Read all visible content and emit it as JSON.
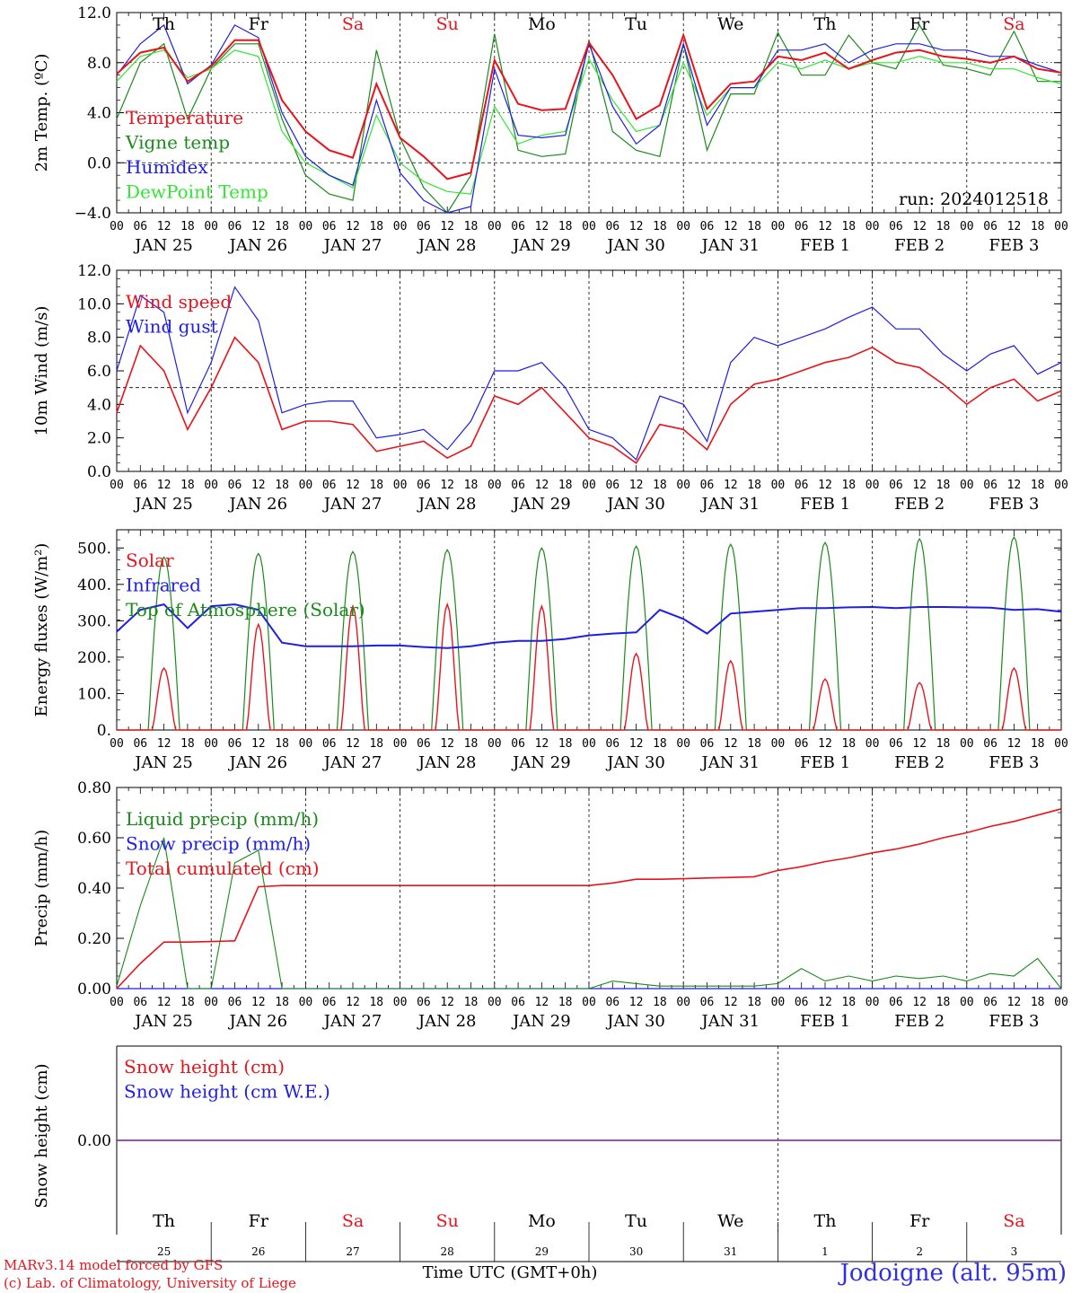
{
  "footer": {
    "model": "MARv3.14 model forced by GFS",
    "copyright": "(c) Lab. of Climatology, University of Liege",
    "xlabel": "Time UTC (GMT+0h)",
    "station": "Jodoigne (alt. 95m)"
  },
  "colors": {
    "red": "#e8141c",
    "green": "#1a8a1a",
    "blue": "#1e1ee6",
    "lightgreen": "#33e633",
    "purple": "#7a1a9a",
    "weekend": "#e8141c",
    "weekday": "#000000"
  },
  "days": {
    "weekday_labels": [
      "Th",
      "Fr",
      "Sa",
      "Su",
      "Mo",
      "Tu",
      "We",
      "Th",
      "Fr",
      "Sa"
    ],
    "weekend_flags": [
      false,
      false,
      true,
      true,
      false,
      false,
      false,
      false,
      false,
      true
    ],
    "date_labels": [
      "JAN 25",
      "JAN 26",
      "JAN 27",
      "JAN 28",
      "JAN 29",
      "JAN 30",
      "JAN 31",
      "FEB  1",
      "FEB  2",
      "FEB  3"
    ],
    "day_numbers": [
      "25",
      "26",
      "27",
      "28",
      "29",
      "30",
      "31",
      "1",
      "2",
      "3"
    ],
    "hour_labels": [
      "00",
      "06",
      "12",
      "18"
    ],
    "final_hour": "00"
  },
  "chart_data": [
    {
      "type": "line",
      "ylabel": "2m Temp. (ºC)",
      "ylim": [
        -4,
        12
      ],
      "yticks": [
        "12.0",
        "8.0",
        "4.0",
        "0.0",
        "−4.0"
      ],
      "reference_line": 0,
      "annotation": "run: 2024012518",
      "x_hours": [
        0,
        6,
        12,
        18,
        24,
        30,
        36,
        42,
        48,
        54,
        60,
        66,
        72,
        78,
        84,
        90,
        96,
        102,
        108,
        114,
        120,
        126,
        132,
        138,
        144,
        150,
        156,
        162,
        168,
        174,
        180,
        186,
        192,
        198,
        204,
        210,
        216,
        222,
        228,
        234,
        240
      ],
      "series": [
        {
          "name": "Temperature",
          "color": "red",
          "values": [
            7.1,
            8.8,
            9.2,
            6.5,
            7.7,
            9.8,
            9.8,
            5.0,
            2.5,
            1.0,
            0.4,
            6.3,
            2.0,
            0.5,
            -1.3,
            -0.8,
            8.2,
            4.7,
            4.2,
            4.3,
            9.6,
            7.0,
            3.5,
            4.6,
            10.2,
            4.3,
            6.3,
            6.5,
            8.5,
            8.2,
            8.8,
            7.5,
            8.2,
            8.8,
            9.0,
            8.5,
            8.3,
            8.0,
            8.5,
            7.5,
            7.2
          ]
        },
        {
          "name": "Vigne temp",
          "color": "green",
          "values": [
            3.5,
            8.0,
            9.5,
            3.5,
            7.5,
            9.5,
            9.5,
            3.5,
            -1.0,
            -2.5,
            -3.0,
            9.0,
            2.0,
            -2.0,
            -4.0,
            -1.0,
            10.3,
            1.0,
            0.5,
            0.7,
            9.8,
            2.5,
            1.0,
            0.5,
            9.5,
            1.0,
            5.5,
            5.5,
            10.4,
            7.0,
            7.0,
            10.2,
            8.0,
            7.5,
            11.0,
            7.8,
            7.5,
            7.0,
            10.5,
            6.5,
            6.5
          ]
        },
        {
          "name": "Humidex",
          "color": "blue",
          "values": [
            7.0,
            9.5,
            11.0,
            6.3,
            7.8,
            11.0,
            10.0,
            4.0,
            0.5,
            -1.0,
            -1.8,
            5.0,
            -0.8,
            -3.0,
            -4.0,
            -3.5,
            7.5,
            2.2,
            2.0,
            2.2,
            9.5,
            4.5,
            1.5,
            3.0,
            9.5,
            3.0,
            6.0,
            6.0,
            9.0,
            9.0,
            9.5,
            8.0,
            9.0,
            9.5,
            9.5,
            9.0,
            9.0,
            8.5,
            8.5,
            7.8,
            7.2
          ]
        },
        {
          "name": "DewPoint Temp",
          "color": "lightgreen",
          "values": [
            6.5,
            8.5,
            9.0,
            6.8,
            7.5,
            9.0,
            8.5,
            2.5,
            0.0,
            -1.0,
            -2.0,
            3.8,
            0.0,
            -1.5,
            -2.3,
            -2.5,
            4.5,
            1.5,
            2.2,
            2.5,
            8.3,
            5.0,
            2.5,
            3.0,
            8.0,
            3.8,
            6.0,
            6.0,
            8.0,
            7.5,
            8.2,
            7.5,
            8.0,
            8.0,
            8.5,
            8.0,
            8.0,
            7.5,
            7.5,
            6.8,
            6.3
          ]
        }
      ],
      "legend": [
        "Temperature",
        "Vigne temp",
        "Humidex",
        "DewPoint Temp"
      ]
    },
    {
      "type": "line",
      "ylabel": "10m Wind (m/s)",
      "ylim": [
        0,
        12
      ],
      "yticks": [
        "12.0",
        "10.0",
        "8.0",
        "6.0",
        "4.0",
        "2.0",
        "0.0"
      ],
      "reference_line": 5,
      "x_hours": [
        0,
        6,
        12,
        18,
        24,
        30,
        36,
        42,
        48,
        54,
        60,
        66,
        72,
        78,
        84,
        90,
        96,
        102,
        108,
        114,
        120,
        126,
        132,
        138,
        144,
        150,
        156,
        162,
        168,
        174,
        180,
        186,
        192,
        198,
        204,
        210,
        216,
        222,
        228,
        234,
        240
      ],
      "series": [
        {
          "name": "Wind speed",
          "color": "red",
          "values": [
            3.5,
            7.5,
            6.0,
            2.5,
            5.0,
            8.0,
            6.5,
            2.5,
            3.0,
            3.0,
            2.8,
            1.2,
            1.5,
            1.8,
            0.8,
            1.5,
            4.5,
            4.0,
            5.0,
            3.5,
            2.0,
            1.5,
            0.5,
            2.8,
            2.5,
            1.3,
            4.0,
            5.2,
            5.5,
            6.0,
            6.5,
            6.8,
            7.4,
            6.5,
            6.2,
            5.2,
            4.0,
            5.0,
            5.5,
            4.2,
            4.8
          ]
        },
        {
          "name": "Wind gust",
          "color": "blue",
          "values": [
            6.0,
            10.5,
            9.5,
            3.5,
            6.5,
            11.0,
            9.0,
            3.5,
            4.0,
            4.2,
            4.2,
            2.0,
            2.2,
            2.5,
            1.3,
            3.0,
            6.0,
            6.0,
            6.5,
            5.0,
            2.5,
            2.0,
            0.7,
            4.5,
            4.0,
            1.8,
            6.5,
            8.0,
            7.5,
            8.0,
            8.5,
            9.2,
            9.8,
            8.5,
            8.5,
            7.0,
            6.0,
            7.0,
            7.5,
            5.8,
            6.5
          ]
        }
      ],
      "legend": [
        "Wind speed",
        "Wind gust"
      ]
    },
    {
      "type": "line",
      "ylabel": "Energy fluxes (W/m²)",
      "ylim": [
        0,
        550
      ],
      "yticks": [
        "500.",
        "400.",
        "300.",
        "200.",
        "100.",
        "0."
      ],
      "peaks": {
        "toa_solar": [
          475,
          485,
          490,
          495,
          500,
          505,
          510,
          515,
          525,
          530
        ],
        "solar": [
          170,
          290,
          340,
          345,
          340,
          210,
          190,
          140,
          130,
          170
        ]
      },
      "x_hours": [
        0,
        6,
        12,
        18,
        24,
        30,
        36,
        42,
        48,
        54,
        60,
        66,
        72,
        78,
        84,
        90,
        96,
        102,
        108,
        114,
        120,
        126,
        132,
        138,
        144,
        150,
        156,
        162,
        168,
        174,
        180,
        186,
        192,
        198,
        204,
        210,
        216,
        222,
        228,
        234,
        240
      ],
      "series": [
        {
          "name": "Infrared",
          "color": "blue",
          "values": [
            270,
            330,
            345,
            280,
            340,
            345,
            330,
            240,
            230,
            230,
            230,
            232,
            232,
            228,
            225,
            230,
            240,
            245,
            245,
            250,
            260,
            265,
            268,
            330,
            305,
            265,
            320,
            325,
            330,
            335,
            335,
            337,
            338,
            335,
            338,
            338,
            337,
            336,
            330,
            332,
            325
          ]
        }
      ],
      "legend": [
        "Solar",
        "Infrared",
        "Top of Atmosphere (Solar)"
      ]
    },
    {
      "type": "line",
      "ylabel": "Precip (mm/h)",
      "ylim": [
        0,
        0.8
      ],
      "yticks": [
        "0.80",
        "0.60",
        "0.40",
        "0.20",
        "0.00"
      ],
      "x_hours": [
        0,
        6,
        12,
        18,
        24,
        30,
        36,
        42,
        48,
        54,
        60,
        66,
        72,
        78,
        84,
        90,
        96,
        102,
        108,
        114,
        120,
        126,
        132,
        138,
        144,
        150,
        156,
        162,
        168,
        174,
        180,
        186,
        192,
        198,
        204,
        210,
        216,
        222,
        228,
        234,
        240
      ],
      "series": [
        {
          "name": "Liquid precip (mm/h)",
          "color": "green",
          "values": [
            0.01,
            0.33,
            0.6,
            0.0,
            0.0,
            0.5,
            0.55,
            0.0,
            0.0,
            0.0,
            0.0,
            0.0,
            0.0,
            0.0,
            0.0,
            0.0,
            0.0,
            0.0,
            0.0,
            0.0,
            0.0,
            0.03,
            0.02,
            0.01,
            0.01,
            0.01,
            0.01,
            0.01,
            0.02,
            0.08,
            0.03,
            0.05,
            0.03,
            0.05,
            0.04,
            0.05,
            0.03,
            0.06,
            0.05,
            0.12,
            0.0
          ]
        },
        {
          "name": "Snow precip (mm/h)",
          "color": "blue",
          "values": [
            0,
            0,
            0,
            0,
            0,
            0,
            0,
            0,
            0,
            0,
            0,
            0,
            0,
            0,
            0,
            0,
            0,
            0,
            0,
            0,
            0,
            0,
            0,
            0,
            0,
            0,
            0,
            0,
            0,
            0,
            0,
            0,
            0,
            0,
            0,
            0,
            0,
            0,
            0,
            0,
            0
          ]
        },
        {
          "name": "Total cumulated (cm)",
          "color": "red",
          "values": [
            0.0,
            0.1,
            0.185,
            0.185,
            0.187,
            0.19,
            0.405,
            0.41,
            0.41,
            0.41,
            0.41,
            0.41,
            0.41,
            0.41,
            0.41,
            0.41,
            0.41,
            0.41,
            0.41,
            0.41,
            0.41,
            0.42,
            0.435,
            0.435,
            0.437,
            0.44,
            0.442,
            0.445,
            0.47,
            0.485,
            0.505,
            0.52,
            0.54,
            0.555,
            0.575,
            0.6,
            0.62,
            0.645,
            0.665,
            0.69,
            0.715
          ]
        }
      ],
      "legend": [
        "Liquid precip (mm/h)",
        "Snow precip (mm/h)",
        "Total cumulated (cm)"
      ]
    },
    {
      "type": "line",
      "ylabel": "Snow height (cm)",
      "yticks": [
        "0.00"
      ],
      "series": [
        {
          "name": "Snow height (cm)",
          "color": "red",
          "values": [
            0,
            0
          ]
        },
        {
          "name": "Snow height (cm W.E.)",
          "color": "blue",
          "values": [
            0,
            0
          ]
        }
      ],
      "legend": [
        "Snow height (cm)",
        "Snow height (cm W.E.)"
      ]
    }
  ]
}
